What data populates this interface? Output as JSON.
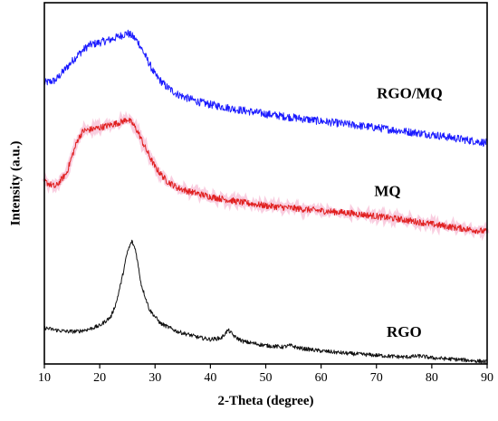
{
  "chart_data": {
    "type": "line",
    "title": "",
    "xlabel": "2-Theta (degree)",
    "ylabel": "Intensity (a.u.)",
    "xlim": [
      10,
      90
    ],
    "ylim": [
      0,
      100
    ],
    "xticks": [
      10,
      20,
      30,
      40,
      50,
      60,
      70,
      80,
      90
    ],
    "yticks": [],
    "grid": false,
    "legend": "none",
    "series": [
      {
        "name": "RGO/MQ",
        "color": "#1a1aff",
        "x": [
          10,
          12,
          14,
          16,
          18,
          20,
          22,
          24,
          25,
          26,
          27,
          28,
          30,
          32,
          34,
          36,
          38,
          40,
          45,
          50,
          55,
          60,
          65,
          70,
          75,
          80,
          85,
          90
        ],
        "y": [
          77.8,
          78.5,
          82.0,
          85.5,
          88.2,
          89.0,
          89.8,
          91.0,
          91.6,
          90.6,
          89.0,
          86.0,
          80.0,
          76.8,
          74.7,
          73.5,
          72.5,
          71.8,
          70.4,
          69.2,
          68.2,
          67.2,
          66.3,
          65.4,
          64.4,
          63.5,
          62.3,
          61.2
        ]
      },
      {
        "name": "MQ",
        "color": "#e02020",
        "x": [
          10,
          12,
          14,
          15,
          16,
          17,
          18,
          20,
          22,
          24,
          25,
          26,
          27,
          28,
          30,
          32,
          34,
          36,
          40,
          45,
          50,
          55,
          60,
          65,
          70,
          75,
          80,
          85,
          90
        ],
        "y": [
          50.5,
          49.0,
          52.8,
          57.5,
          62.0,
          64.5,
          64.8,
          65.4,
          66.2,
          67.0,
          67.8,
          66.4,
          64.0,
          60.5,
          54.5,
          50.8,
          48.8,
          47.8,
          46.3,
          44.9,
          43.8,
          43.1,
          42.4,
          41.8,
          40.9,
          39.9,
          38.7,
          37.6,
          36.6
        ]
      },
      {
        "name": "RGO",
        "color": "#111111",
        "x": [
          10,
          12,
          14,
          16,
          18,
          20,
          22,
          23,
          24,
          25,
          25.8,
          26.5,
          27.5,
          29,
          31,
          34,
          38,
          40,
          42,
          43.2,
          44.5,
          46,
          50,
          53,
          54.5,
          56,
          60,
          65,
          70,
          75,
          78,
          80,
          85,
          90
        ],
        "y": [
          10.0,
          9.4,
          9.0,
          9.0,
          9.6,
          10.6,
          13.0,
          17.0,
          23.5,
          31.0,
          34.0,
          31.5,
          22.0,
          15.0,
          11.2,
          9.0,
          7.3,
          6.8,
          7.2,
          9.4,
          7.4,
          6.2,
          5.1,
          4.7,
          5.1,
          4.4,
          3.6,
          2.9,
          2.4,
          1.9,
          2.2,
          1.7,
          1.2,
          0.6
        ]
      }
    ],
    "annotations": [
      {
        "text": "RGO/MQ",
        "x": 76,
        "y": 73.5
      },
      {
        "text": "MQ",
        "x": 72,
        "y": 46.5
      },
      {
        "text": "RGO",
        "x": 75,
        "y": 7.5
      }
    ]
  }
}
